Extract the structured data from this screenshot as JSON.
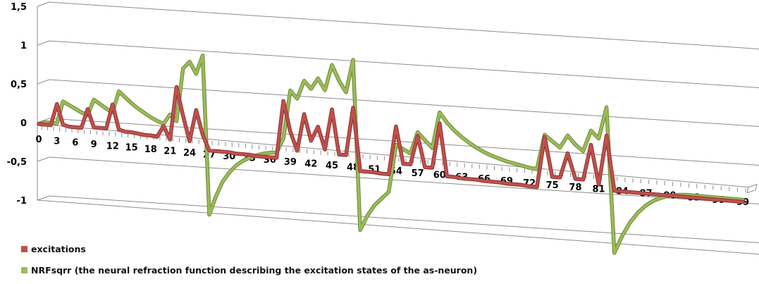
{
  "chart_data": {
    "type": "line",
    "title": "",
    "xlabel": "",
    "ylabel": "",
    "ylim": [
      -1,
      1.5
    ],
    "yticks": [
      "1,5",
      "1",
      "0,5",
      "0",
      "-0,5",
      "-1"
    ],
    "ytick_values": [
      1.5,
      1,
      0.5,
      0,
      -0.5,
      -1
    ],
    "xticks": [
      "0",
      "3",
      "6",
      "9",
      "12",
      "15",
      "18",
      "21",
      "24",
      "27",
      "30",
      "33",
      "36",
      "39",
      "42",
      "45",
      "48",
      "51",
      "54",
      "57",
      "60",
      "63",
      "66",
      "69",
      "72",
      "75",
      "78",
      "81",
      "84",
      "87",
      "90",
      "93",
      "96",
      "99"
    ],
    "grid": true,
    "style": "3d-line",
    "legend_position": "bottom-left",
    "x": [
      0,
      1,
      2,
      3,
      4,
      5,
      6,
      7,
      8,
      9,
      10,
      11,
      12,
      13,
      14,
      15,
      16,
      17,
      18,
      19,
      20,
      21,
      22,
      23,
      24,
      25,
      26,
      27,
      28,
      29,
      30,
      31,
      32,
      33,
      34,
      35,
      36,
      37,
      38,
      39,
      40,
      41,
      42,
      43,
      44,
      45,
      46,
      47,
      48,
      49,
      50,
      51,
      52,
      53,
      54,
      55,
      56,
      57,
      58,
      59,
      60,
      61,
      62,
      63,
      64,
      65,
      66,
      67,
      68,
      69,
      70,
      71,
      72,
      73,
      74,
      75,
      76,
      77,
      78,
      79,
      80,
      81,
      82,
      83,
      84,
      85,
      86,
      87,
      88,
      89,
      90,
      91,
      92,
      93,
      94,
      95,
      96,
      97,
      98,
      99
    ],
    "series": [
      {
        "name": "excitations",
        "color": "#c0504d",
        "values": [
          0,
          0,
          0,
          0.28,
          0.02,
          0,
          0,
          0,
          0.25,
          0.02,
          0.02,
          0.02,
          0.34,
          0.02,
          0,
          0,
          -0.01,
          -0.02,
          -0.02,
          -0.03,
          0.12,
          -0.05,
          0.65,
          0.28,
          -0.05,
          0.37,
          0.05,
          -0.15,
          -0.15,
          -0.15,
          -0.15,
          -0.16,
          -0.16,
          -0.16,
          -0.17,
          -0.17,
          -0.17,
          -0.17,
          0.6,
          0.2,
          -0.05,
          0.45,
          0.1,
          0.3,
          0,
          0.55,
          -0.05,
          -0.05,
          0.6,
          -0.25,
          -0.25,
          -0.25,
          -0.26,
          -0.26,
          0.4,
          -0.1,
          -0.1,
          0.3,
          -0.12,
          -0.12,
          0.5,
          -0.22,
          -0.22,
          -0.23,
          -0.23,
          -0.23,
          -0.24,
          -0.24,
          -0.24,
          -0.25,
          -0.25,
          -0.25,
          -0.26,
          -0.26,
          0.45,
          -0.1,
          -0.1,
          0.25,
          -0.1,
          -0.1,
          0.4,
          -0.15,
          0.55,
          -0.22,
          -0.22,
          -0.22,
          -0.22,
          -0.22,
          -0.22,
          -0.22,
          -0.22,
          -0.22,
          -0.22,
          -0.22,
          -0.22,
          -0.22,
          -0.22,
          -0.22,
          -0.22,
          -0.22
        ]
      },
      {
        "name": "NRFsqrr (the neural refraction function describing the excitation states of the as-neuron)",
        "color": "#9bbb59",
        "values": [
          0,
          0.03,
          0.03,
          0.03,
          0.32,
          0.28,
          0.24,
          0.2,
          0.17,
          0.38,
          0.33,
          0.28,
          0.24,
          0.52,
          0.45,
          0.38,
          0.32,
          0.27,
          0.22,
          0.18,
          0.15,
          0.28,
          0.2,
          0.9,
          1.0,
          0.85,
          1.1,
          -1.0,
          -0.75,
          -0.55,
          -0.42,
          -0.32,
          -0.25,
          -0.2,
          -0.16,
          -0.13,
          -0.11,
          -0.1,
          0.1,
          0.75,
          0.65,
          0.9,
          0.8,
          0.95,
          0.8,
          1.15,
          0.95,
          0.8,
          1.25,
          -1.05,
          -0.85,
          -0.7,
          -0.6,
          -0.5,
          0.15,
          0.1,
          0.05,
          0.35,
          0.25,
          0.15,
          0.65,
          0.52,
          0.42,
          0.34,
          0.27,
          0.21,
          0.16,
          0.12,
          0.09,
          0.06,
          0.04,
          0.02,
          0.0,
          -0.01,
          0.48,
          0.4,
          0.32,
          0.5,
          0.38,
          0.3,
          0.6,
          0.5,
          0.95,
          -1.1,
          -0.85,
          -0.65,
          -0.5,
          -0.39,
          -0.31,
          -0.26,
          -0.22,
          -0.2,
          -0.19,
          -0.19,
          -0.19,
          -0.19,
          -0.19,
          -0.19,
          -0.19,
          -0.19
        ]
      }
    ]
  },
  "legend": {
    "items": [
      {
        "label": "excitations",
        "color": "#c0504d"
      },
      {
        "label": "NRFsqrr (the neural refraction function describing the excitation states of the as-neuron)",
        "color": "#9bbb59"
      }
    ]
  }
}
